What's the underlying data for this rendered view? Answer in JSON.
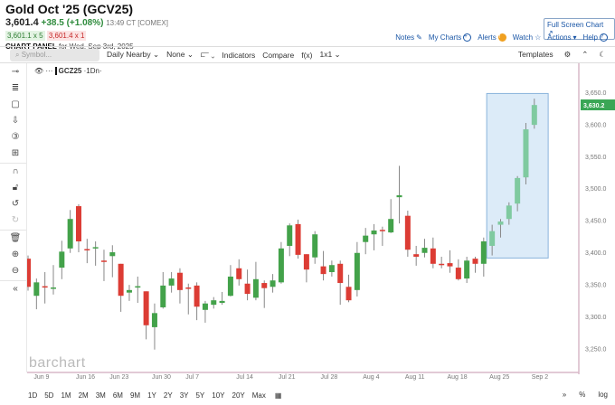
{
  "header": {
    "title": "Gold Oct '25 (GCV25)",
    "last": "3,601.4",
    "change": "+38.5 (+1.08%)",
    "time": "13:49 CT [COMEX]",
    "bid": "3,601.1 x 5",
    "ask": "3,601.4 x 1",
    "panel_label": "CHART PANEL",
    "panel_date": "for Wed, Sep 3rd, 2025",
    "fullscreen": "Full Screen Chart ↗"
  },
  "links": {
    "notes": "Notes",
    "my_charts": "My Charts",
    "alerts": "Alerts",
    "watch": "Watch",
    "actions": "Actions",
    "help": "Help"
  },
  "toolbar": {
    "symbol_placeholder": "Symbol...",
    "period": "Daily Nearby ⌄",
    "none": "None ⌄",
    "bars": "⫍ ⌄",
    "indicators": "Indicators",
    "compare": "Compare",
    "fx": "f(x)",
    "layout": "1x1 ⌄",
    "templates": "Templates"
  },
  "legend": {
    "symbol": "GCZ25",
    "interval": "·1Dn·"
  },
  "watermark": "barchart",
  "ranges": [
    "1D",
    "5D",
    "1M",
    "2M",
    "3M",
    "6M",
    "9M",
    "1Y",
    "2Y",
    "3Y",
    "5Y",
    "10Y",
    "20Y",
    "Max"
  ],
  "bottom": {
    "percent": "%",
    "log": "log"
  },
  "colors": {
    "up": "#43a24a",
    "down": "#dc3c34",
    "highlight_up": "#7fcaa0",
    "price_tag": "#3aa655"
  },
  "chart_data": {
    "type": "candlestick",
    "symbol": "GCZ25",
    "current_price_label": "3,630.2",
    "current_price": 3630.2,
    "ylim": [
      3225,
      3690
    ],
    "yticks": [
      {
        "v": 3650,
        "label": "3,650.0"
      },
      {
        "v": 3600,
        "label": "3,600.0"
      },
      {
        "v": 3550,
        "label": "3,550.0"
      },
      {
        "v": 3500,
        "label": "3,500.0"
      },
      {
        "v": 3450,
        "label": "3,450.0"
      },
      {
        "v": 3400,
        "label": "3,400.0"
      },
      {
        "v": 3350,
        "label": "3,350.0"
      },
      {
        "v": 3300,
        "label": "3,300.0"
      },
      {
        "v": 3250,
        "label": "3,250.0"
      }
    ],
    "xticks": [
      {
        "i": 1,
        "label": "Jun 9"
      },
      {
        "i": 6,
        "label": "Jun 16"
      },
      {
        "i": 10,
        "label": "Jun 23"
      },
      {
        "i": 15,
        "label": "Jun 30"
      },
      {
        "i": 19,
        "label": "Jul 7"
      },
      {
        "i": 25,
        "label": "Jul 14"
      },
      {
        "i": 30,
        "label": "Jul 21"
      },
      {
        "i": 35,
        "label": "Jul 28"
      },
      {
        "i": 40,
        "label": "Aug 4"
      },
      {
        "i": 45,
        "label": "Aug 11"
      },
      {
        "i": 50,
        "label": "Aug 18"
      },
      {
        "i": 55,
        "label": "Aug 25"
      },
      {
        "i": 60,
        "label": "Sep 2"
      }
    ],
    "highlight_range": {
      "from_index": 55,
      "to_index": 61,
      "low": 3391,
      "high": 3648
    },
    "ohlc": [
      [
        3390,
        3395,
        3340,
        3346
      ],
      [
        3332,
        3359,
        3311,
        3353
      ],
      [
        3347,
        3369,
        3320,
        3345
      ],
      [
        3344,
        3380,
        3334,
        3345
      ],
      [
        3376,
        3418,
        3358,
        3401
      ],
      [
        3406,
        3466,
        3399,
        3452
      ],
      [
        3472,
        3475,
        3400,
        3417
      ],
      [
        3405,
        3421,
        3383,
        3404
      ],
      [
        3407,
        3417,
        3379,
        3408
      ],
      [
        3387,
        3404,
        3355,
        3385
      ],
      [
        3394,
        3411,
        3361,
        3400
      ],
      [
        3382,
        3382,
        3307,
        3332
      ],
      [
        3337,
        3349,
        3324,
        3341
      ],
      [
        3346,
        3362,
        3321,
        3347
      ],
      [
        3339,
        3339,
        3264,
        3286
      ],
      [
        3283,
        3320,
        3248,
        3305
      ],
      [
        3314,
        3369,
        3312,
        3348
      ],
      [
        3348,
        3369,
        3337,
        3359
      ],
      [
        3368,
        3375,
        3320,
        3341
      ],
      [
        3345,
        3351,
        3303,
        3343
      ],
      [
        3348,
        3353,
        3294,
        3315
      ],
      [
        3310,
        3324,
        3290,
        3320
      ],
      [
        3318,
        3330,
        3312,
        3325
      ],
      [
        3321,
        3338,
        3318,
        3324
      ],
      [
        3332,
        3380,
        3331,
        3362
      ],
      [
        3375,
        3389,
        3348,
        3358
      ],
      [
        3351,
        3373,
        3325,
        3335
      ],
      [
        3329,
        3385,
        3325,
        3358
      ],
      [
        3352,
        3356,
        3313,
        3344
      ],
      [
        3346,
        3366,
        3337,
        3356
      ],
      [
        3353,
        3416,
        3351,
        3406
      ],
      [
        3410,
        3445,
        3394,
        3442
      ],
      [
        3444,
        3451,
        3390,
        3396
      ],
      [
        3397,
        3397,
        3353,
        3373
      ],
      [
        3392,
        3433,
        3382,
        3428
      ],
      [
        3378,
        3402,
        3356,
        3366
      ],
      [
        3369,
        3387,
        3362,
        3380
      ],
      [
        3382,
        3387,
        3318,
        3352
      ],
      [
        3346,
        3365,
        3322,
        3325
      ],
      [
        3341,
        3416,
        3331,
        3399
      ],
      [
        3416,
        3438,
        3397,
        3426
      ],
      [
        3428,
        3444,
        3403,
        3434
      ],
      [
        3435,
        3440,
        3410,
        3433
      ],
      [
        3431,
        3483,
        3430,
        3452
      ],
      [
        3486,
        3535,
        3445,
        3489
      ],
      [
        3457,
        3465,
        3393,
        3404
      ],
      [
        3397,
        3410,
        3379,
        3393
      ],
      [
        3399,
        3421,
        3392,
        3407
      ],
      [
        3406,
        3423,
        3375,
        3382
      ],
      [
        3382,
        3393,
        3375,
        3381
      ],
      [
        3383,
        3403,
        3368,
        3378
      ],
      [
        3376,
        3389,
        3356,
        3358
      ],
      [
        3359,
        3393,
        3352,
        3387
      ],
      [
        3390,
        3393,
        3368,
        3382
      ],
      [
        3382,
        3423,
        3362,
        3417
      ],
      [
        3410,
        3443,
        3395,
        3433
      ],
      [
        3443,
        3452,
        3423,
        3448
      ],
      [
        3452,
        3478,
        3443,
        3473
      ],
      [
        3476,
        3519,
        3464,
        3516
      ],
      [
        3517,
        3602,
        3506,
        3592
      ],
      [
        3599,
        3640,
        3593,
        3630
      ]
    ]
  }
}
